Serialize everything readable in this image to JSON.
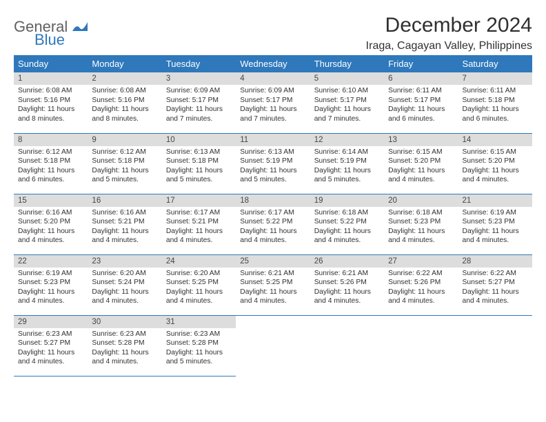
{
  "logo": {
    "general": "General",
    "blue": "Blue"
  },
  "title": "December 2024",
  "location": "Iraga, Cagayan Valley, Philippines",
  "colors": {
    "header_bg": "#2e78bb",
    "header_fg": "#ffffff",
    "daynum_bg": "#dddddd",
    "border": "#2e78bb",
    "text": "#303030"
  },
  "weekdays": [
    "Sunday",
    "Monday",
    "Tuesday",
    "Wednesday",
    "Thursday",
    "Friday",
    "Saturday"
  ],
  "days": [
    {
      "n": "1",
      "sunrise": "6:08 AM",
      "sunset": "5:16 PM",
      "daylight": "11 hours and 8 minutes."
    },
    {
      "n": "2",
      "sunrise": "6:08 AM",
      "sunset": "5:16 PM",
      "daylight": "11 hours and 8 minutes."
    },
    {
      "n": "3",
      "sunrise": "6:09 AM",
      "sunset": "5:17 PM",
      "daylight": "11 hours and 7 minutes."
    },
    {
      "n": "4",
      "sunrise": "6:09 AM",
      "sunset": "5:17 PM",
      "daylight": "11 hours and 7 minutes."
    },
    {
      "n": "5",
      "sunrise": "6:10 AM",
      "sunset": "5:17 PM",
      "daylight": "11 hours and 7 minutes."
    },
    {
      "n": "6",
      "sunrise": "6:11 AM",
      "sunset": "5:17 PM",
      "daylight": "11 hours and 6 minutes."
    },
    {
      "n": "7",
      "sunrise": "6:11 AM",
      "sunset": "5:18 PM",
      "daylight": "11 hours and 6 minutes."
    },
    {
      "n": "8",
      "sunrise": "6:12 AM",
      "sunset": "5:18 PM",
      "daylight": "11 hours and 6 minutes."
    },
    {
      "n": "9",
      "sunrise": "6:12 AM",
      "sunset": "5:18 PM",
      "daylight": "11 hours and 5 minutes."
    },
    {
      "n": "10",
      "sunrise": "6:13 AM",
      "sunset": "5:18 PM",
      "daylight": "11 hours and 5 minutes."
    },
    {
      "n": "11",
      "sunrise": "6:13 AM",
      "sunset": "5:19 PM",
      "daylight": "11 hours and 5 minutes."
    },
    {
      "n": "12",
      "sunrise": "6:14 AM",
      "sunset": "5:19 PM",
      "daylight": "11 hours and 5 minutes."
    },
    {
      "n": "13",
      "sunrise": "6:15 AM",
      "sunset": "5:20 PM",
      "daylight": "11 hours and 4 minutes."
    },
    {
      "n": "14",
      "sunrise": "6:15 AM",
      "sunset": "5:20 PM",
      "daylight": "11 hours and 4 minutes."
    },
    {
      "n": "15",
      "sunrise": "6:16 AM",
      "sunset": "5:20 PM",
      "daylight": "11 hours and 4 minutes."
    },
    {
      "n": "16",
      "sunrise": "6:16 AM",
      "sunset": "5:21 PM",
      "daylight": "11 hours and 4 minutes."
    },
    {
      "n": "17",
      "sunrise": "6:17 AM",
      "sunset": "5:21 PM",
      "daylight": "11 hours and 4 minutes."
    },
    {
      "n": "18",
      "sunrise": "6:17 AM",
      "sunset": "5:22 PM",
      "daylight": "11 hours and 4 minutes."
    },
    {
      "n": "19",
      "sunrise": "6:18 AM",
      "sunset": "5:22 PM",
      "daylight": "11 hours and 4 minutes."
    },
    {
      "n": "20",
      "sunrise": "6:18 AM",
      "sunset": "5:23 PM",
      "daylight": "11 hours and 4 minutes."
    },
    {
      "n": "21",
      "sunrise": "6:19 AM",
      "sunset": "5:23 PM",
      "daylight": "11 hours and 4 minutes."
    },
    {
      "n": "22",
      "sunrise": "6:19 AM",
      "sunset": "5:23 PM",
      "daylight": "11 hours and 4 minutes."
    },
    {
      "n": "23",
      "sunrise": "6:20 AM",
      "sunset": "5:24 PM",
      "daylight": "11 hours and 4 minutes."
    },
    {
      "n": "24",
      "sunrise": "6:20 AM",
      "sunset": "5:25 PM",
      "daylight": "11 hours and 4 minutes."
    },
    {
      "n": "25",
      "sunrise": "6:21 AM",
      "sunset": "5:25 PM",
      "daylight": "11 hours and 4 minutes."
    },
    {
      "n": "26",
      "sunrise": "6:21 AM",
      "sunset": "5:26 PM",
      "daylight": "11 hours and 4 minutes."
    },
    {
      "n": "27",
      "sunrise": "6:22 AM",
      "sunset": "5:26 PM",
      "daylight": "11 hours and 4 minutes."
    },
    {
      "n": "28",
      "sunrise": "6:22 AM",
      "sunset": "5:27 PM",
      "daylight": "11 hours and 4 minutes."
    },
    {
      "n": "29",
      "sunrise": "6:23 AM",
      "sunset": "5:27 PM",
      "daylight": "11 hours and 4 minutes."
    },
    {
      "n": "30",
      "sunrise": "6:23 AM",
      "sunset": "5:28 PM",
      "daylight": "11 hours and 4 minutes."
    },
    {
      "n": "31",
      "sunrise": "6:23 AM",
      "sunset": "5:28 PM",
      "daylight": "11 hours and 5 minutes."
    }
  ],
  "labels": {
    "sunrise": "Sunrise:",
    "sunset": "Sunset:",
    "daylight": "Daylight:"
  }
}
